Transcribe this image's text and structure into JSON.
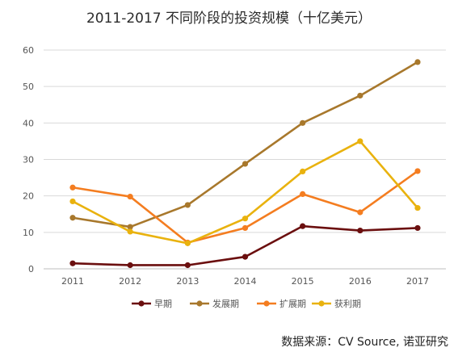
{
  "chart_data": {
    "type": "line",
    "title": "2011-2017 不同阶段的投资规模（十亿美元）",
    "categories": [
      "2011",
      "2012",
      "2013",
      "2014",
      "2015",
      "2016",
      "2017"
    ],
    "ylim": [
      0,
      60
    ],
    "yticks": [
      0,
      10,
      20,
      30,
      40,
      50,
      60
    ],
    "grid": true,
    "legend_position": "bottom",
    "series": [
      {
        "name": "早期",
        "color": "#6b0f0f",
        "values": [
          1.5,
          1.0,
          1.0,
          3.3,
          11.7,
          10.5,
          11.2
        ]
      },
      {
        "name": "发展期",
        "color": "#a8782c",
        "values": [
          14.0,
          11.5,
          17.5,
          28.8,
          40.0,
          47.5,
          56.7
        ]
      },
      {
        "name": "扩展期",
        "color": "#f47d20",
        "values": [
          22.3,
          19.8,
          7.2,
          11.2,
          20.5,
          15.5,
          26.8
        ]
      },
      {
        "name": "获利期",
        "color": "#e9b20e",
        "values": [
          18.5,
          10.2,
          7.0,
          13.8,
          26.7,
          35.0,
          16.7
        ]
      }
    ]
  },
  "source": "数据来源：CV Source, 诺亚研究"
}
